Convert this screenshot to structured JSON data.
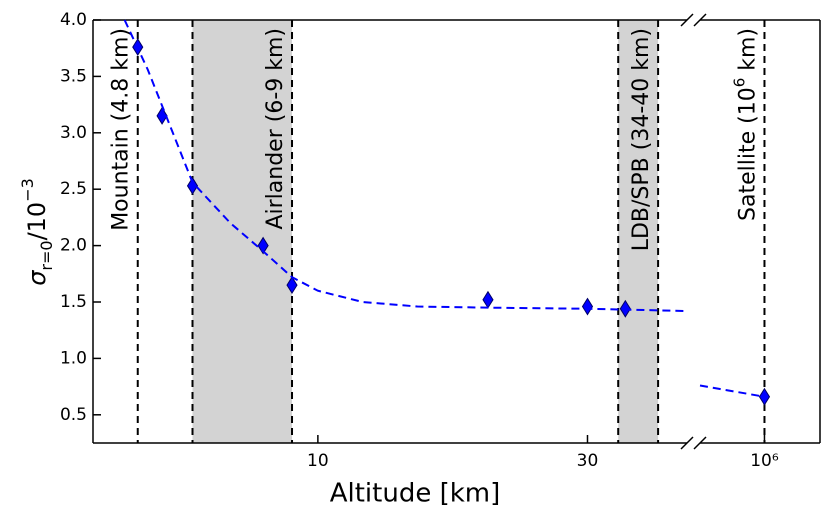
{
  "chart_data": {
    "type": "scatter",
    "xlabel": "Altitude [km]",
    "ylabel": [
      "σ",
      "r=0",
      "/10",
      "−3"
    ],
    "xscale": "log",
    "ylim": [
      0.25,
      4.0
    ],
    "yticks": [
      0.5,
      {
        "value": 1.0,
        "label": "1.0"
      },
      1.5,
      {
        "value": 2.0,
        "label": "2.0"
      },
      2.5,
      {
        "value": 3.0,
        "label": "3.0"
      },
      3.5,
      {
        "value": 4.0,
        "label": "4.0"
      }
    ],
    "panels": [
      {
        "xlim": [
          4,
          45
        ],
        "xticks": [
          10,
          30
        ]
      },
      {
        "xlim": [
          200000,
          4000000
        ],
        "xticks": [
          {
            "value": 1000000,
            "label": "10⁶"
          }
        ]
      }
    ],
    "series": [
      {
        "color": "#0000ff",
        "marker": "diamond",
        "x": [
          4.8,
          5.3,
          6,
          8,
          9,
          20,
          30,
          35,
          1000000
        ],
        "values": [
          3.76,
          3.15,
          2.53,
          2.0,
          1.65,
          1.52,
          1.46,
          1.44,
          0.66
        ]
      },
      {
        "color": "#0000ff",
        "style": "dashed",
        "x": [
          4.55,
          5,
          6,
          7,
          8,
          9,
          10,
          12,
          15,
          20,
          30,
          45,
          null,
          200000,
          1000000
        ],
        "values": [
          4.0,
          3.56,
          2.56,
          2.2,
          1.95,
          1.72,
          1.6,
          1.5,
          1.46,
          1.45,
          1.44,
          1.42,
          null,
          0.76,
          0.66
        ]
      }
    ],
    "annotations": [
      {
        "x": 4.8,
        "label": [
          "Mountain (4.8 km)"
        ]
      },
      {
        "band": [
          6,
          9
        ],
        "label": [
          "Airlander (6-9 km)"
        ]
      },
      {
        "band": [
          34,
          40
        ],
        "label": [
          "LDB/SPB (34-40 km)"
        ]
      },
      {
        "x": 1000000,
        "label": [
          "Satellite (10",
          "6",
          " km)"
        ]
      }
    ],
    "band_color": "#d3d3d3"
  }
}
